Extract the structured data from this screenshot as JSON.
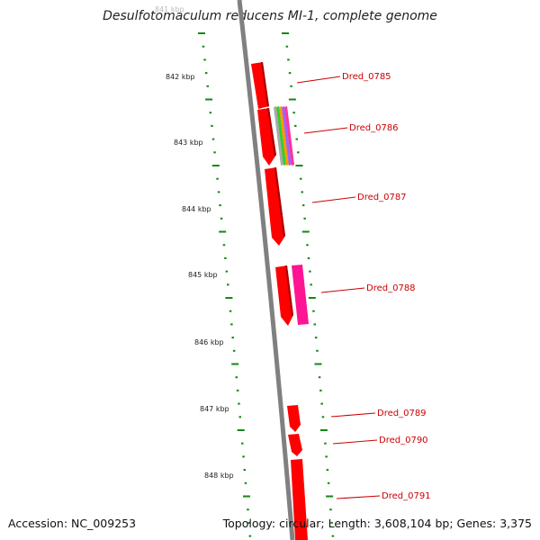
{
  "title": "Desulfotomaculum reducens MI-1, complete genome",
  "accession": "Accession: NC_009253",
  "summary": "Topology: circular; Length: 3,608,104 bp; Genes: 3,375",
  "ticks": [
    "841 kbp",
    "842 kbp",
    "843 kbp",
    "844 kbp",
    "845 kbp",
    "846 kbp",
    "847 kbp",
    "848 kbp"
  ],
  "genes": [
    {
      "label": "Dred_0785",
      "strand": "forward",
      "color": "#ff0000"
    },
    {
      "label": "Dred_0786",
      "strand": "forward",
      "color": "#ff0000"
    },
    {
      "label": "Dred_0787",
      "strand": "forward",
      "color": "#ff0000"
    },
    {
      "label": "Dred_0788",
      "strand": "forward",
      "color": "#ff0000"
    },
    {
      "label": "Dred_0789",
      "strand": "forward",
      "color": "#ff0000"
    },
    {
      "label": "Dred_0790",
      "strand": "forward",
      "color": "#ff0000"
    },
    {
      "label": "Dred_0791",
      "strand": "forward",
      "color": "#ff0000"
    }
  ],
  "features": [
    {
      "type": "multicolor-band",
      "colors": [
        "#aaaaaa",
        "#33cc33",
        "#ff9900",
        "#9966ff",
        "#ff3399"
      ]
    },
    {
      "type": "magenta-block",
      "color": "#ff1493"
    }
  ],
  "colors": {
    "backbone": "#808080",
    "tick_dots": "#118811",
    "label": "#cc0000",
    "leader": "#cc0000"
  }
}
